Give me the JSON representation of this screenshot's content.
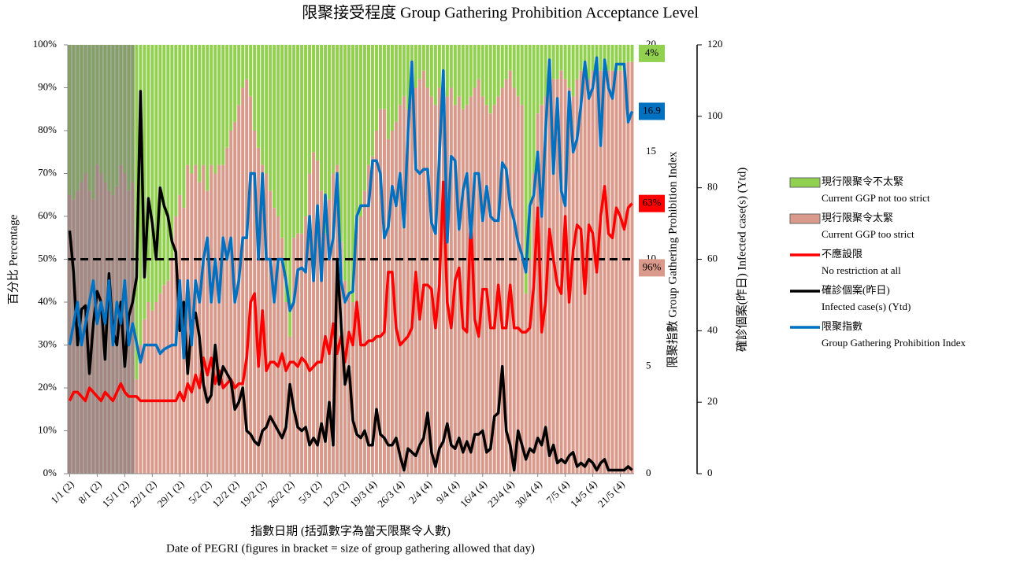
{
  "chart_data": {
    "type": "combo",
    "title": "限聚接受程度 Group Gathering Prohibition Acceptance Level",
    "x_label": [
      "指數日期 (括弧數字為當天限聚令人數)",
      "Date of PEGRI (figures in bracket = size of group gathering allowed that day)"
    ],
    "y_label": "百分比 Percentage",
    "y2_label": "限聚指數 Group Gathering Prohibition Index",
    "y3_label": "確診個案(昨日) Infected case(s) (Ytd)",
    "categories": [
      "1/1 (2)",
      null,
      null,
      null,
      null,
      null,
      null,
      "8/1 (2)",
      null,
      null,
      null,
      null,
      null,
      null,
      "15/1 (2)",
      null,
      null,
      null,
      null,
      null,
      null,
      "22/1 (2)",
      null,
      null,
      null,
      null,
      null,
      null,
      "29/1 (2)",
      null,
      null,
      null,
      null,
      null,
      null,
      "5/2 (2)",
      null,
      null,
      null,
      null,
      null,
      null,
      "12/2 (2)",
      null,
      null,
      null,
      null,
      null,
      null,
      "19/2 (2)",
      null,
      null,
      null,
      null,
      null,
      null,
      "26/2 (2)",
      null,
      null,
      null,
      null,
      null,
      null,
      "5/3 (2)",
      null,
      null,
      null,
      null,
      null,
      null,
      "12/3 (2)",
      null,
      null,
      null,
      null,
      null,
      null,
      "19/3 (4)",
      null,
      null,
      null,
      null,
      null,
      null,
      "26/3 (4)",
      null,
      null,
      null,
      null,
      null,
      null,
      "2/4 (4)",
      null,
      null,
      null,
      null,
      null,
      null,
      "9/4 (4)",
      null,
      null,
      null,
      null,
      null,
      null,
      "16/4 (4)",
      null,
      null,
      null,
      null,
      null,
      null,
      "23/4 (4)",
      null,
      null,
      null,
      null,
      null,
      null,
      "30/4 (4)",
      null,
      null,
      null,
      null,
      null,
      null,
      "7/5 (4)",
      null,
      null,
      null,
      null,
      null,
      null,
      "14/5 (4)",
      null,
      null,
      null,
      null,
      null,
      null,
      "21/5 (4)",
      null,
      null,
      null
    ],
    "ylim": [
      0,
      100
    ],
    "yticks": [
      {
        "value": 0,
        "label": "0%"
      },
      {
        "value": 10,
        "label": "10%"
      },
      {
        "value": 20,
        "label": "20%"
      },
      {
        "value": 30,
        "label": "30%"
      },
      {
        "value": 40,
        "label": "40%"
      },
      {
        "value": 50,
        "label": "50%"
      },
      {
        "value": 60,
        "label": "60%"
      },
      {
        "value": 70,
        "label": "70%"
      },
      {
        "value": 80,
        "label": "80%"
      },
      {
        "value": 90,
        "label": "90%"
      },
      {
        "value": 100,
        "label": "100%"
      }
    ],
    "y2lim": [
      0,
      20
    ],
    "y2ticks": [
      0,
      5,
      10,
      15,
      20
    ],
    "y3lim": [
      0,
      120
    ],
    "y3ticks": [
      0,
      20,
      40,
      60,
      80,
      100,
      120
    ],
    "reference_line": 50,
    "shaded_range": [
      0,
      16
    ],
    "series": [
      {
        "name": "現行限聚令不太緊",
        "name_en": "Current GGP not too strict",
        "kind": "bar",
        "color": "#92d050",
        "end_label": "4%",
        "values": [
          35,
          36,
          34,
          32,
          30,
          34,
          36,
          28,
          30,
          32,
          34,
          35,
          33,
          28,
          30,
          34,
          32,
          78,
          70,
          64,
          60,
          62,
          60,
          58,
          56,
          55,
          50,
          40,
          35,
          38,
          28,
          30,
          28,
          32,
          28,
          34,
          28,
          30,
          28,
          28,
          24,
          20,
          18,
          14,
          10,
          8,
          12,
          20,
          24,
          28,
          30,
          34,
          38,
          40,
          45,
          60,
          68,
          45,
          44,
          44,
          40,
          30,
          25,
          27,
          34,
          44,
          36,
          30,
          28,
          46,
          55,
          58,
          60,
          42,
          40,
          34,
          28,
          26,
          20,
          15,
          15,
          22,
          20,
          18,
          14,
          12,
          15,
          12,
          10,
          8,
          6,
          10,
          12,
          14,
          10,
          8,
          12,
          10,
          14,
          12,
          15,
          14,
          12,
          10,
          8,
          12,
          14,
          16,
          14,
          12,
          10,
          8,
          6,
          10,
          12,
          14,
          58,
          50,
          30,
          16,
          14,
          12,
          10,
          8,
          8,
          6,
          8,
          10,
          12,
          8,
          6,
          6,
          8,
          6,
          4,
          6,
          6,
          6,
          6,
          6,
          6,
          6,
          4,
          4
        ]
      },
      {
        "name": "現行限聚令太緊",
        "name_en": "Current GGP too strict",
        "kind": "bar",
        "color": "#da9a8b",
        "end_label": "96%",
        "values": [
          65,
          64,
          66,
          68,
          70,
          66,
          64,
          72,
          70,
          68,
          66,
          65,
          67,
          72,
          70,
          66,
          68,
          22,
          30,
          36,
          40,
          38,
          40,
          42,
          44,
          45,
          50,
          60,
          65,
          62,
          72,
          70,
          72,
          68,
          72,
          66,
          72,
          70,
          72,
          72,
          76,
          80,
          82,
          86,
          90,
          92,
          88,
          80,
          76,
          72,
          70,
          66,
          62,
          60,
          55,
          40,
          32,
          55,
          56,
          56,
          60,
          70,
          75,
          73,
          66,
          56,
          64,
          70,
          72,
          54,
          45,
          42,
          40,
          58,
          60,
          66,
          72,
          74,
          80,
          85,
          85,
          78,
          80,
          82,
          86,
          88,
          85,
          88,
          90,
          92,
          94,
          90,
          88,
          86,
          90,
          92,
          88,
          90,
          86,
          88,
          85,
          86,
          88,
          90,
          92,
          88,
          86,
          84,
          86,
          88,
          90,
          92,
          94,
          90,
          88,
          86,
          42,
          50,
          70,
          84,
          86,
          88,
          90,
          92,
          92,
          94,
          92,
          90,
          88,
          92,
          94,
          94,
          92,
          94,
          96,
          94,
          94,
          94,
          94,
          94,
          94,
          94,
          96,
          96
        ]
      },
      {
        "name": "不應設限",
        "name_en": "No restriction at all",
        "kind": "line",
        "color": "#ff0000",
        "end_label": "63%",
        "values": [
          17,
          19,
          19,
          18,
          17,
          20,
          19,
          18,
          17,
          19,
          18,
          17,
          19,
          21,
          19,
          18,
          18,
          18,
          17,
          17,
          17,
          17,
          17,
          17,
          17,
          17,
          17,
          17,
          19,
          17,
          21,
          19,
          23,
          20,
          27,
          23,
          27,
          21,
          24,
          20,
          21,
          22,
          20,
          21,
          21,
          27,
          40,
          42,
          25,
          38,
          24,
          26,
          26,
          25,
          28,
          24,
          26,
          26,
          25,
          27,
          26,
          24,
          25,
          26,
          26,
          32,
          28,
          35,
          28,
          32,
          26,
          33,
          30,
          40,
          30,
          30,
          31,
          31,
          32,
          32,
          33,
          47,
          47,
          34,
          30,
          31,
          32,
          34,
          47,
          36,
          44,
          44,
          43,
          34,
          44,
          68,
          40,
          34,
          45,
          48,
          34,
          33,
          60,
          36,
          32,
          43,
          43,
          34,
          34,
          44,
          34,
          34,
          44,
          34,
          34,
          33,
          33,
          34,
          44,
          62,
          33,
          40,
          57,
          50,
          44,
          42,
          60,
          40,
          52,
          58,
          57,
          42,
          58,
          56,
          47,
          60,
          67,
          56,
          55,
          62,
          60,
          57,
          62,
          63
        ]
      },
      {
        "name": "確診個案(昨日)",
        "name_en": "Infected case(s) (Ytd)",
        "kind": "line",
        "axis": "y3",
        "color": "#000000",
        "values": [
          68,
          56,
          36,
          46,
          47,
          28,
          42,
          51,
          48,
          32,
          56,
          40,
          36,
          48,
          30,
          44,
          48,
          55,
          107,
          55,
          77,
          70,
          60,
          80,
          75,
          72,
          65,
          62,
          40,
          48,
          28,
          42,
          45,
          38,
          25,
          20,
          22,
          36,
          25,
          30,
          28,
          26,
          18,
          20,
          24,
          12,
          11,
          9,
          8,
          12,
          13,
          16,
          14,
          12,
          10,
          13,
          25,
          18,
          13,
          12,
          13,
          8,
          10,
          8,
          14,
          9,
          20,
          8,
          60,
          42,
          25,
          30,
          15,
          11,
          10,
          12,
          8,
          8,
          18,
          11,
          10,
          8,
          8,
          10,
          5,
          1,
          7,
          6,
          5,
          8,
          10,
          17,
          6,
          2,
          7,
          9,
          14,
          8,
          7,
          10,
          6,
          9,
          6,
          11,
          11,
          12,
          6,
          7,
          16,
          17,
          30,
          12,
          8,
          1,
          12,
          8,
          4,
          7,
          6,
          10,
          8,
          13,
          5,
          8,
          3,
          4,
          3,
          5,
          6,
          2,
          3,
          2,
          4,
          3,
          1,
          3,
          4,
          1,
          1,
          1,
          1,
          1,
          2,
          1
        ]
      },
      {
        "name": "限聚指數",
        "name_en": "Group Gathering Prohibition Index",
        "kind": "line",
        "axis": "y2",
        "color": "#0070c0",
        "end_label": "16.9",
        "values": [
          6,
          7,
          8,
          6,
          7,
          8,
          9,
          7,
          8,
          7,
          9,
          6,
          8,
          7,
          9,
          6,
          7,
          6.1,
          5.2,
          6,
          6,
          6,
          6,
          5.6,
          5.8,
          5.9,
          6,
          6,
          9,
          5.4,
          9,
          6,
          9,
          8,
          10,
          11,
          8,
          10,
          8,
          11,
          10,
          11,
          8,
          9,
          11,
          11,
          14,
          14,
          10,
          14,
          10,
          10,
          8,
          10,
          10,
          9,
          7.6,
          8,
          9.5,
          9.6,
          9.4,
          12,
          9,
          12.5,
          9,
          13,
          10,
          11,
          14,
          9,
          8,
          8.4,
          8.5,
          12,
          12.5,
          12.5,
          12.5,
          14.6,
          14.6,
          14,
          11,
          11.5,
          13.4,
          12.5,
          14,
          11.5,
          15.8,
          19.2,
          14.2,
          14,
          14.2,
          14.2,
          11.7,
          11.2,
          14.8,
          18.8,
          10.8,
          14.8,
          14.6,
          11.4,
          13.2,
          14,
          11,
          14,
          14,
          11.8,
          13.4,
          12,
          11.8,
          11.8,
          14.5,
          14.2,
          12.5,
          11.8,
          10.8,
          10.2,
          9.4,
          12.5,
          13,
          15,
          12,
          16,
          19.3,
          14,
          17.5,
          13.2,
          12.5,
          17.8,
          15,
          15.6,
          17.2,
          19.2,
          17.5,
          18,
          19.4,
          15.3,
          19.3,
          18,
          17.5,
          19.1,
          19.1,
          19.1,
          16.4,
          16.9
        ]
      }
    ]
  }
}
